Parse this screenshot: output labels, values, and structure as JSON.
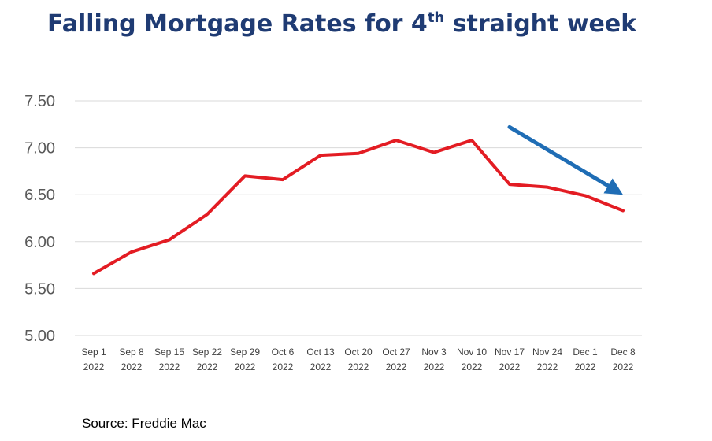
{
  "title": {
    "main": "Falling Mortgage Rates for 4",
    "sup": "th",
    "tail": " straight week"
  },
  "source": "Source: Freddie Mac",
  "colors": {
    "title": "#1f3b73",
    "line": "#e31c23",
    "arrow": "#1f6db5",
    "grid": "#d9d9d9",
    "tick": "#595959"
  },
  "chart_data": {
    "type": "line",
    "title": "Falling Mortgage Rates for 4th straight week",
    "xlabel": "",
    "ylabel": "",
    "ylim": [
      5.0,
      7.5
    ],
    "yticks": [
      "5.00",
      "5.50",
      "6.00",
      "6.50",
      "7.00",
      "7.50"
    ],
    "grid": true,
    "categories": [
      [
        "Sep 1",
        "2022"
      ],
      [
        "Sep 8",
        "2022"
      ],
      [
        "Sep 15",
        "2022"
      ],
      [
        "Sep 22",
        "2022"
      ],
      [
        "Sep 29",
        "2022"
      ],
      [
        "Oct 6",
        "2022"
      ],
      [
        "Oct 13",
        "2022"
      ],
      [
        "Oct 20",
        "2022"
      ],
      [
        "Oct 27",
        "2022"
      ],
      [
        "Nov 3",
        "2022"
      ],
      [
        "Nov 10",
        "2022"
      ],
      [
        "Nov 17",
        "2022"
      ],
      [
        "Nov 24",
        "2022"
      ],
      [
        "Dec 1",
        "2022"
      ],
      [
        "Dec 8",
        "2022"
      ]
    ],
    "series": [
      {
        "values": [
          5.66,
          5.89,
          6.02,
          6.29,
          6.7,
          6.66,
          6.92,
          6.94,
          7.08,
          6.95,
          7.08,
          6.61,
          6.58,
          6.49,
          6.33
        ]
      }
    ],
    "annotations": [
      {
        "type": "arrow",
        "direction": "down",
        "from_category": 11,
        "to_category": 14,
        "from_value": 7.22,
        "to_value": 6.5
      }
    ]
  }
}
